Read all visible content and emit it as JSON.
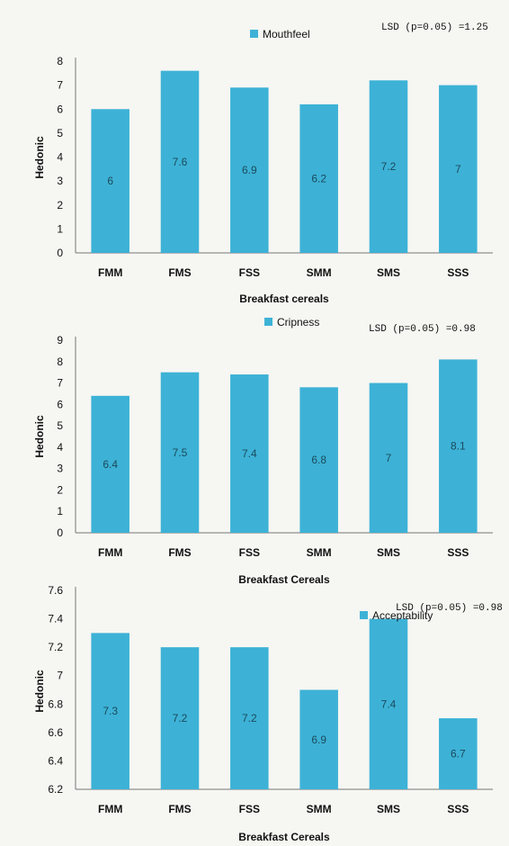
{
  "chart_data": [
    {
      "type": "bar",
      "legend": "Mouthfeel",
      "annotation": "LSD (p=0.05) =1.25",
      "categories": [
        "FMM",
        "FMS",
        "FSS",
        "SMM",
        "SMS",
        "SSS"
      ],
      "values": [
        6,
        7.6,
        6.9,
        6.2,
        7.2,
        7
      ],
      "data_labels": [
        "6",
        "7.6",
        "6.9",
        "6.2",
        "7.2",
        "7"
      ],
      "ylim": [
        0,
        8
      ],
      "yticks": [
        "0",
        "1",
        "2",
        "3",
        "4",
        "5",
        "6",
        "7",
        "8"
      ],
      "xlabel": "Breakfast cereals",
      "ylabel": "Hedonic",
      "grid": false,
      "legend_position": "top-center",
      "color": "#3db2d6"
    },
    {
      "type": "bar",
      "legend": "Cripness",
      "annotation": "LSD (p=0.05) =0.98",
      "categories": [
        "FMM",
        "FMS",
        "FSS",
        "SMM",
        "SMS",
        "SSS"
      ],
      "values": [
        6.4,
        7.5,
        7.4,
        6.8,
        7,
        8.1
      ],
      "data_labels": [
        "6.4",
        "7.5",
        "7.4",
        "6.8",
        "7",
        "8.1"
      ],
      "ylim": [
        0,
        9
      ],
      "yticks": [
        "0",
        "1",
        "2",
        "3",
        "4",
        "5",
        "6",
        "7",
        "8",
        "9"
      ],
      "xlabel": "Breakfast Cereals",
      "ylabel": "Hedonic",
      "grid": false,
      "legend_position": "top-center",
      "color": "#3db2d6"
    },
    {
      "type": "bar",
      "legend": "Acceptability",
      "annotation": "LSD (p=0.05) =0.98",
      "categories": [
        "FMM",
        "FMS",
        "FSS",
        "SMM",
        "SMS",
        "SSS"
      ],
      "values": [
        7.3,
        7.2,
        7.2,
        6.9,
        7.4,
        6.7
      ],
      "data_labels": [
        "7.3",
        "7.2",
        "7.2",
        "6.9",
        "7.4",
        "6.7"
      ],
      "ylim": [
        6.2,
        7.6
      ],
      "yticks": [
        "6.2",
        "6.4",
        "6.6",
        "6.8",
        "7",
        "7.2",
        "7.4",
        "7.6"
      ],
      "xlabel": "Breakfast Cereals",
      "ylabel": "Hedonic",
      "grid": false,
      "legend_position": "top-right",
      "color": "#3db2d6"
    }
  ]
}
